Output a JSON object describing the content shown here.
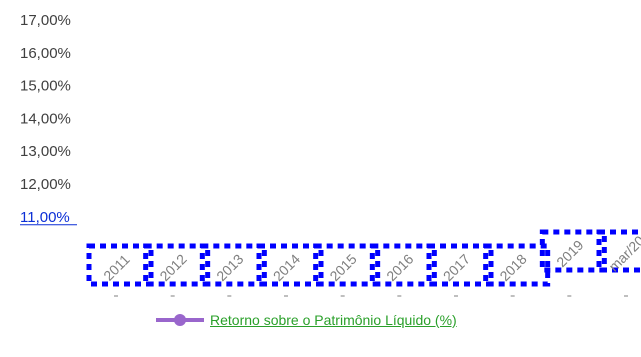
{
  "chart_data": {
    "type": "line",
    "title": "",
    "xlabel": "",
    "ylabel": "",
    "y_ticks": [
      "17,00%",
      "16,00%",
      "15,00%",
      "14,00%",
      "13,00%",
      "12,00%",
      "11,00%"
    ],
    "ylim": [
      11,
      17
    ],
    "categories": [
      "2011",
      "2012",
      "2013",
      "2014",
      "2015",
      "2016",
      "2017",
      "2018",
      "2019",
      "mar/20"
    ],
    "series": [
      {
        "name": "Retorno sobre o Patrimônio Líquido (%)",
        "values": [
          null,
          null,
          null,
          null,
          null,
          null,
          null,
          null,
          null,
          null
        ]
      }
    ],
    "grid": false,
    "legend_position": "bottom",
    "colors": {
      "series": "#9966cc",
      "legend_text": "#2aa02a",
      "highlight_tick": "#0b2ed6",
      "outline": "#0000ff"
    }
  }
}
